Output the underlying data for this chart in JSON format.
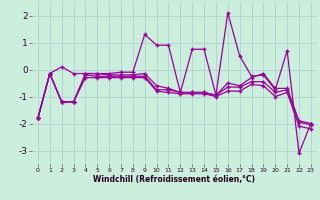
{
  "xlabel": "Windchill (Refroidissement éolien,°C)",
  "background_color": "#cceedd",
  "grid_color": "#aacccc",
  "line_color": "#990099",
  "x": [
    0,
    1,
    2,
    3,
    4,
    5,
    6,
    7,
    8,
    9,
    10,
    11,
    12,
    13,
    14,
    15,
    16,
    17,
    18,
    19,
    20,
    21,
    22,
    23
  ],
  "line1": [
    -1.8,
    -0.15,
    0.1,
    -0.15,
    -0.15,
    -0.15,
    -0.15,
    -0.1,
    -0.1,
    1.3,
    0.9,
    0.9,
    -0.85,
    0.75,
    0.75,
    -0.95,
    2.1,
    0.5,
    -0.25,
    -0.2,
    -0.75,
    0.7,
    -3.1,
    -2.0
  ],
  "line2": [
    -1.8,
    -0.15,
    -1.2,
    -1.2,
    -0.15,
    -0.15,
    -0.2,
    -0.2,
    -0.2,
    -0.15,
    -0.6,
    -0.7,
    -0.85,
    -0.85,
    -0.85,
    -0.95,
    -0.5,
    -0.6,
    -0.3,
    -0.15,
    -0.7,
    -0.7,
    -1.9,
    -2.0
  ],
  "line3": [
    -1.8,
    -0.15,
    -1.2,
    -1.2,
    -0.2,
    -0.25,
    -0.25,
    -0.25,
    -0.25,
    -0.25,
    -0.75,
    -0.75,
    -0.85,
    -0.85,
    -0.85,
    -0.95,
    -0.65,
    -0.65,
    -0.45,
    -0.45,
    -0.85,
    -0.75,
    -1.95,
    -2.05
  ],
  "line4": [
    -1.8,
    -0.15,
    -1.2,
    -1.2,
    -0.3,
    -0.3,
    -0.3,
    -0.3,
    -0.3,
    -0.3,
    -0.8,
    -0.85,
    -0.9,
    -0.9,
    -0.9,
    -1.0,
    -0.8,
    -0.8,
    -0.55,
    -0.6,
    -1.0,
    -0.85,
    -2.1,
    -2.2
  ],
  "ylim": [
    -3.5,
    2.5
  ],
  "yticks": [
    -3,
    -2,
    -1,
    0,
    1,
    2
  ],
  "xlim": [
    -0.5,
    23.5
  ]
}
